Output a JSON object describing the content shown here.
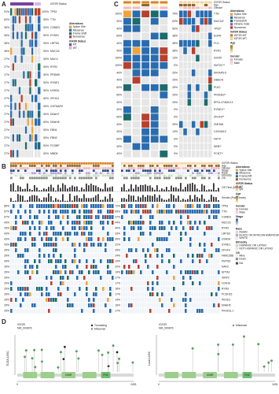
{
  "panel_a": {
    "label": "A",
    "annotation": "IGF2R Status",
    "left_percents": [
      "91%",
      "64%",
      "36%",
      "36%",
      "36%",
      "36%",
      "27%",
      "27%",
      "27%",
      "27%",
      "27%",
      "27%",
      "27%",
      "27%",
      "27%",
      "27%",
      "27%",
      "27%",
      "27%"
    ],
    "right_percents": [
      "100%",
      "50%",
      "50%",
      "50%",
      "50%",
      "50%",
      "50%",
      "50%",
      "50%",
      "50%",
      "50%",
      "50%",
      "50%",
      "50%",
      "50%",
      "50%",
      "50%",
      "50%",
      "50%"
    ],
    "genes": [
      "TP53",
      "TTN",
      "CSMD3",
      "HYDIN",
      "LRP1B",
      "MUC16",
      "MUC4",
      "RYR2",
      "PRDM9",
      "SYNE1",
      "USH2A",
      "ZFHX4",
      "CNTNAP5",
      "DNAH7",
      "DNAH8",
      "FBN1",
      "FBN2",
      "FCGBP",
      "MBD5"
    ],
    "legend": [
      {
        "title": "Alterations",
        "items": [
          "Splice Site",
          "Missense",
          "Frame Shift",
          "Nonsense"
        ],
        "colors": [
          "#f2a33a",
          "#2a6cb0",
          "#1d6b6b",
          "#b8402d"
        ]
      },
      {
        "title": "IGF2R Status",
        "items": [
          "MT",
          "WT"
        ],
        "colors": [
          "#7b3fa0",
          "#d8b4e8"
        ]
      }
    ]
  },
  "panel_c": {
    "label": "C",
    "annotations": [
      "IGF2R Status",
      "Age",
      "Gender"
    ],
    "left_percents": [
      "100%",
      "40%",
      "40%",
      "60%",
      "40%",
      "40%",
      "100%",
      "100%",
      "40%",
      "40%",
      "60%",
      "60%",
      "40%",
      "40%",
      "60%",
      "40%",
      "40%",
      "60%",
      "40%",
      "40%"
    ],
    "right_percents": [
      "75%",
      "63%",
      "50%",
      "38%",
      "38%",
      "38%",
      "13%",
      "0%",
      "25%",
      "25%",
      "25%",
      "25%",
      "25%",
      "0%",
      "0%",
      "25%",
      "13%",
      "0%",
      "0%",
      "0%"
    ],
    "genes": [
      "TTN",
      "MUC16*",
      "TP53*",
      "EGFR",
      "FLG",
      "RYR1",
      "IGF2R",
      "KMT2C**",
      "KRTAP5-5",
      "OBSCN",
      "PLEC",
      "PRUNE2*",
      "RP11-473M10.3",
      "SYNE1**",
      "ZFHX3**",
      "ZNF469",
      "CACNA1C",
      "FAT4*",
      "NEB**",
      "PCNT**"
    ],
    "legend": [
      {
        "title": "Alterations",
        "items": [
          "Splice Site",
          "Missense",
          "Frameshift",
          "Inframe indel",
          "Nonsense"
        ],
        "colors": [
          "#f2a33a",
          "#2a6cb0",
          "#1d6b6b",
          "#8e5fb0",
          "#b8402d"
        ]
      },
      {
        "title": "IGF2R Status",
        "items": [
          "IGF2R-MT",
          "IGF2R-WT"
        ],
        "colors": [
          "#d9822b",
          "#f6d3a8"
        ]
      },
      {
        "title": "Age",
        "colors": [
          "#fff4cf",
          "#8a6a2c"
        ]
      },
      {
        "title": "Gender",
        "items": [
          "Female",
          "Male"
        ],
        "colors": [
          "#f4b6c2",
          "#f7dbe2"
        ]
      }
    ]
  },
  "panel_b": {
    "label": "B",
    "annotations": [
      "IGF2R Status",
      "Age",
      "Gender",
      "Stage",
      "Race",
      "Ethnicity",
      "OS"
    ],
    "os_time": "OS Time (Month)",
    "smoke": "Smoke (Pack Years)",
    "left_percents": [
      "86%",
      "57%",
      "57%",
      "43%",
      "43%",
      "43%",
      "43%",
      "43%",
      "29%",
      "29%",
      "43%",
      "29%",
      "29%",
      "29%",
      "29%",
      "29%",
      "29%",
      "29%",
      "29%",
      "29%"
    ],
    "right_percents": [
      "72%",
      "69%",
      "37%",
      "44%",
      "40%",
      "33%",
      "35%",
      "22%",
      "25%",
      "24%",
      "19%",
      "20%",
      "19%",
      "17%",
      "17%",
      "16%",
      "17%",
      "14%",
      "16%",
      "17%"
    ],
    "genes": [
      "TP53",
      "TTN",
      "CSMD3",
      "MUC16",
      "RYR2",
      "LRP1B",
      "USH2A",
      "SYNE1",
      "ZFHX4",
      "FAM135B",
      "KMT2D",
      "NAV3",
      "SPTA1",
      "XIRP2",
      "CDH10",
      "RYR3",
      "PCDH15",
      "PKHD1",
      "DNAH5",
      "PKHD1L1"
    ],
    "legend": [
      {
        "title": "Alterations",
        "items": [
          "Splice Site",
          "Missense",
          "Frameshift",
          "Nonsense"
        ],
        "colors": [
          "#f2a33a",
          "#2a6cb0",
          "#1d6b6b",
          "#b8402d"
        ]
      },
      {
        "title": "IGF2R Status",
        "items": [
          "MT",
          "WT"
        ],
        "colors": [
          "#d9822b",
          "#f6d3a8"
        ]
      },
      {
        "title": "Age",
        "colors": [
          "#fff4cf",
          "#8a6a2c"
        ]
      },
      {
        "title": "Gender",
        "items": [
          "Female",
          "Male"
        ],
        "colors": [
          "#f4b6c2",
          "#f7dbe2"
        ]
      },
      {
        "title": "Stage",
        "colors": [
          "#eef3fb",
          "#1f4e8c"
        ]
      },
      {
        "title": "Race",
        "items": [
          "ASIAN",
          "BLACK OR AFRICAN AMERICAN",
          "WHITE"
        ],
        "colors": [
          "#e9e0f2",
          "#b7a3d6",
          "#f5f0fa"
        ]
      },
      {
        "title": "Ethnicity",
        "items": [
          "HISPANIC OR LATINO",
          "NOT HISPANIC OR LATINO"
        ],
        "colors": [
          "#c9e3c2",
          "#eef6ea"
        ]
      },
      {
        "title": "OS",
        "items": [
          "Alive",
          "Dead"
        ],
        "colors": [
          "#ffffff",
          "#8c8c8c"
        ]
      },
      {
        "items": [
          "NA"
        ],
        "colors": [
          "#404040"
        ]
      }
    ]
  },
  "panel_d": {
    "label": "D",
    "plots": [
      {
        "ylabel": "TCGA-LUSC",
        "gene": "IGF2R",
        "transcript": "NM_000876",
        "legend": [
          "Truncating",
          "Missense"
        ],
        "legend_colors": [
          "#222222",
          "#4caf50"
        ],
        "domains": [
          "CIMR",
          "FN2"
        ],
        "start": "0",
        "end": "2491"
      },
      {
        "ylabel": "Local-LUSC",
        "gene": "IGF2R",
        "transcript": "NM_000876",
        "legend": [
          "Missense"
        ],
        "legend_colors": [
          "#4caf50"
        ],
        "domains": [
          "CIMR",
          "FN2"
        ],
        "start": "0",
        "end": "2491"
      }
    ]
  }
}
